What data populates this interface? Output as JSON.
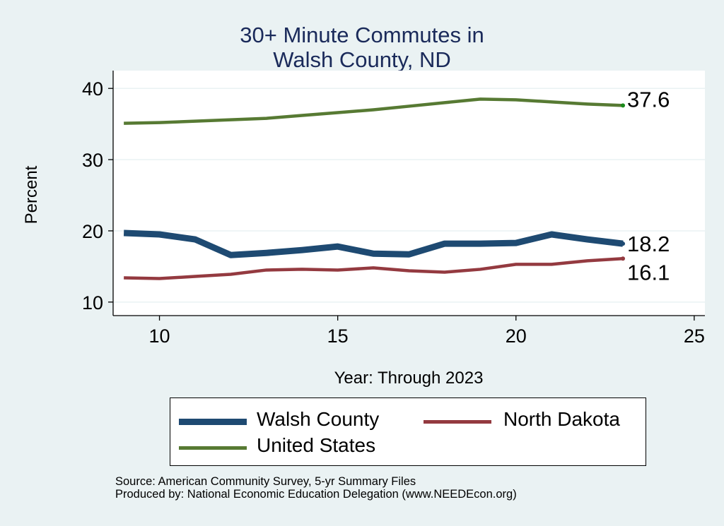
{
  "chart_data": {
    "type": "line",
    "title": [
      "30+ Minute Commutes in",
      "Walsh County, ND"
    ],
    "xlabel": "Year: Through 2023",
    "ylabel": "Percent",
    "xlim": [
      8.7,
      25.3
    ],
    "ylim": [
      8.1,
      42.5
    ],
    "xticks": [
      10,
      15,
      20,
      25
    ],
    "yticks": [
      10,
      20,
      30,
      40
    ],
    "x": [
      9,
      10,
      11,
      12,
      13,
      14,
      15,
      16,
      17,
      18,
      19,
      20,
      21,
      22,
      23
    ],
    "series": [
      {
        "name": "Walsh County",
        "color": "#1e4a72",
        "width": 9,
        "values": [
          19.7,
          19.5,
          18.8,
          16.6,
          16.9,
          17.3,
          17.8,
          16.8,
          16.7,
          18.2,
          18.2,
          18.3,
          19.5,
          18.8,
          18.2
        ],
        "end_label": "18.2"
      },
      {
        "name": "North Dakota",
        "color": "#943a40",
        "width": 4.5,
        "values": [
          13.4,
          13.3,
          13.6,
          13.9,
          14.5,
          14.6,
          14.5,
          14.8,
          14.4,
          14.2,
          14.6,
          15.3,
          15.3,
          15.8,
          16.1
        ],
        "end_label": "16.1"
      },
      {
        "name": "United States",
        "color": "#577a33",
        "width": 4.5,
        "values": [
          35.1,
          35.2,
          35.4,
          35.6,
          35.8,
          36.2,
          36.6,
          37.0,
          37.5,
          38.0,
          38.5,
          38.4,
          38.1,
          37.8,
          37.6
        ],
        "end_label": "37.6"
      }
    ],
    "grid": true,
    "legend_position": "bottom"
  },
  "source": [
    "Source: American Community Survey, 5-yr Summary Files",
    "Produced by: National Economic Education Delegation (www.NEEDEcon.org)"
  ]
}
